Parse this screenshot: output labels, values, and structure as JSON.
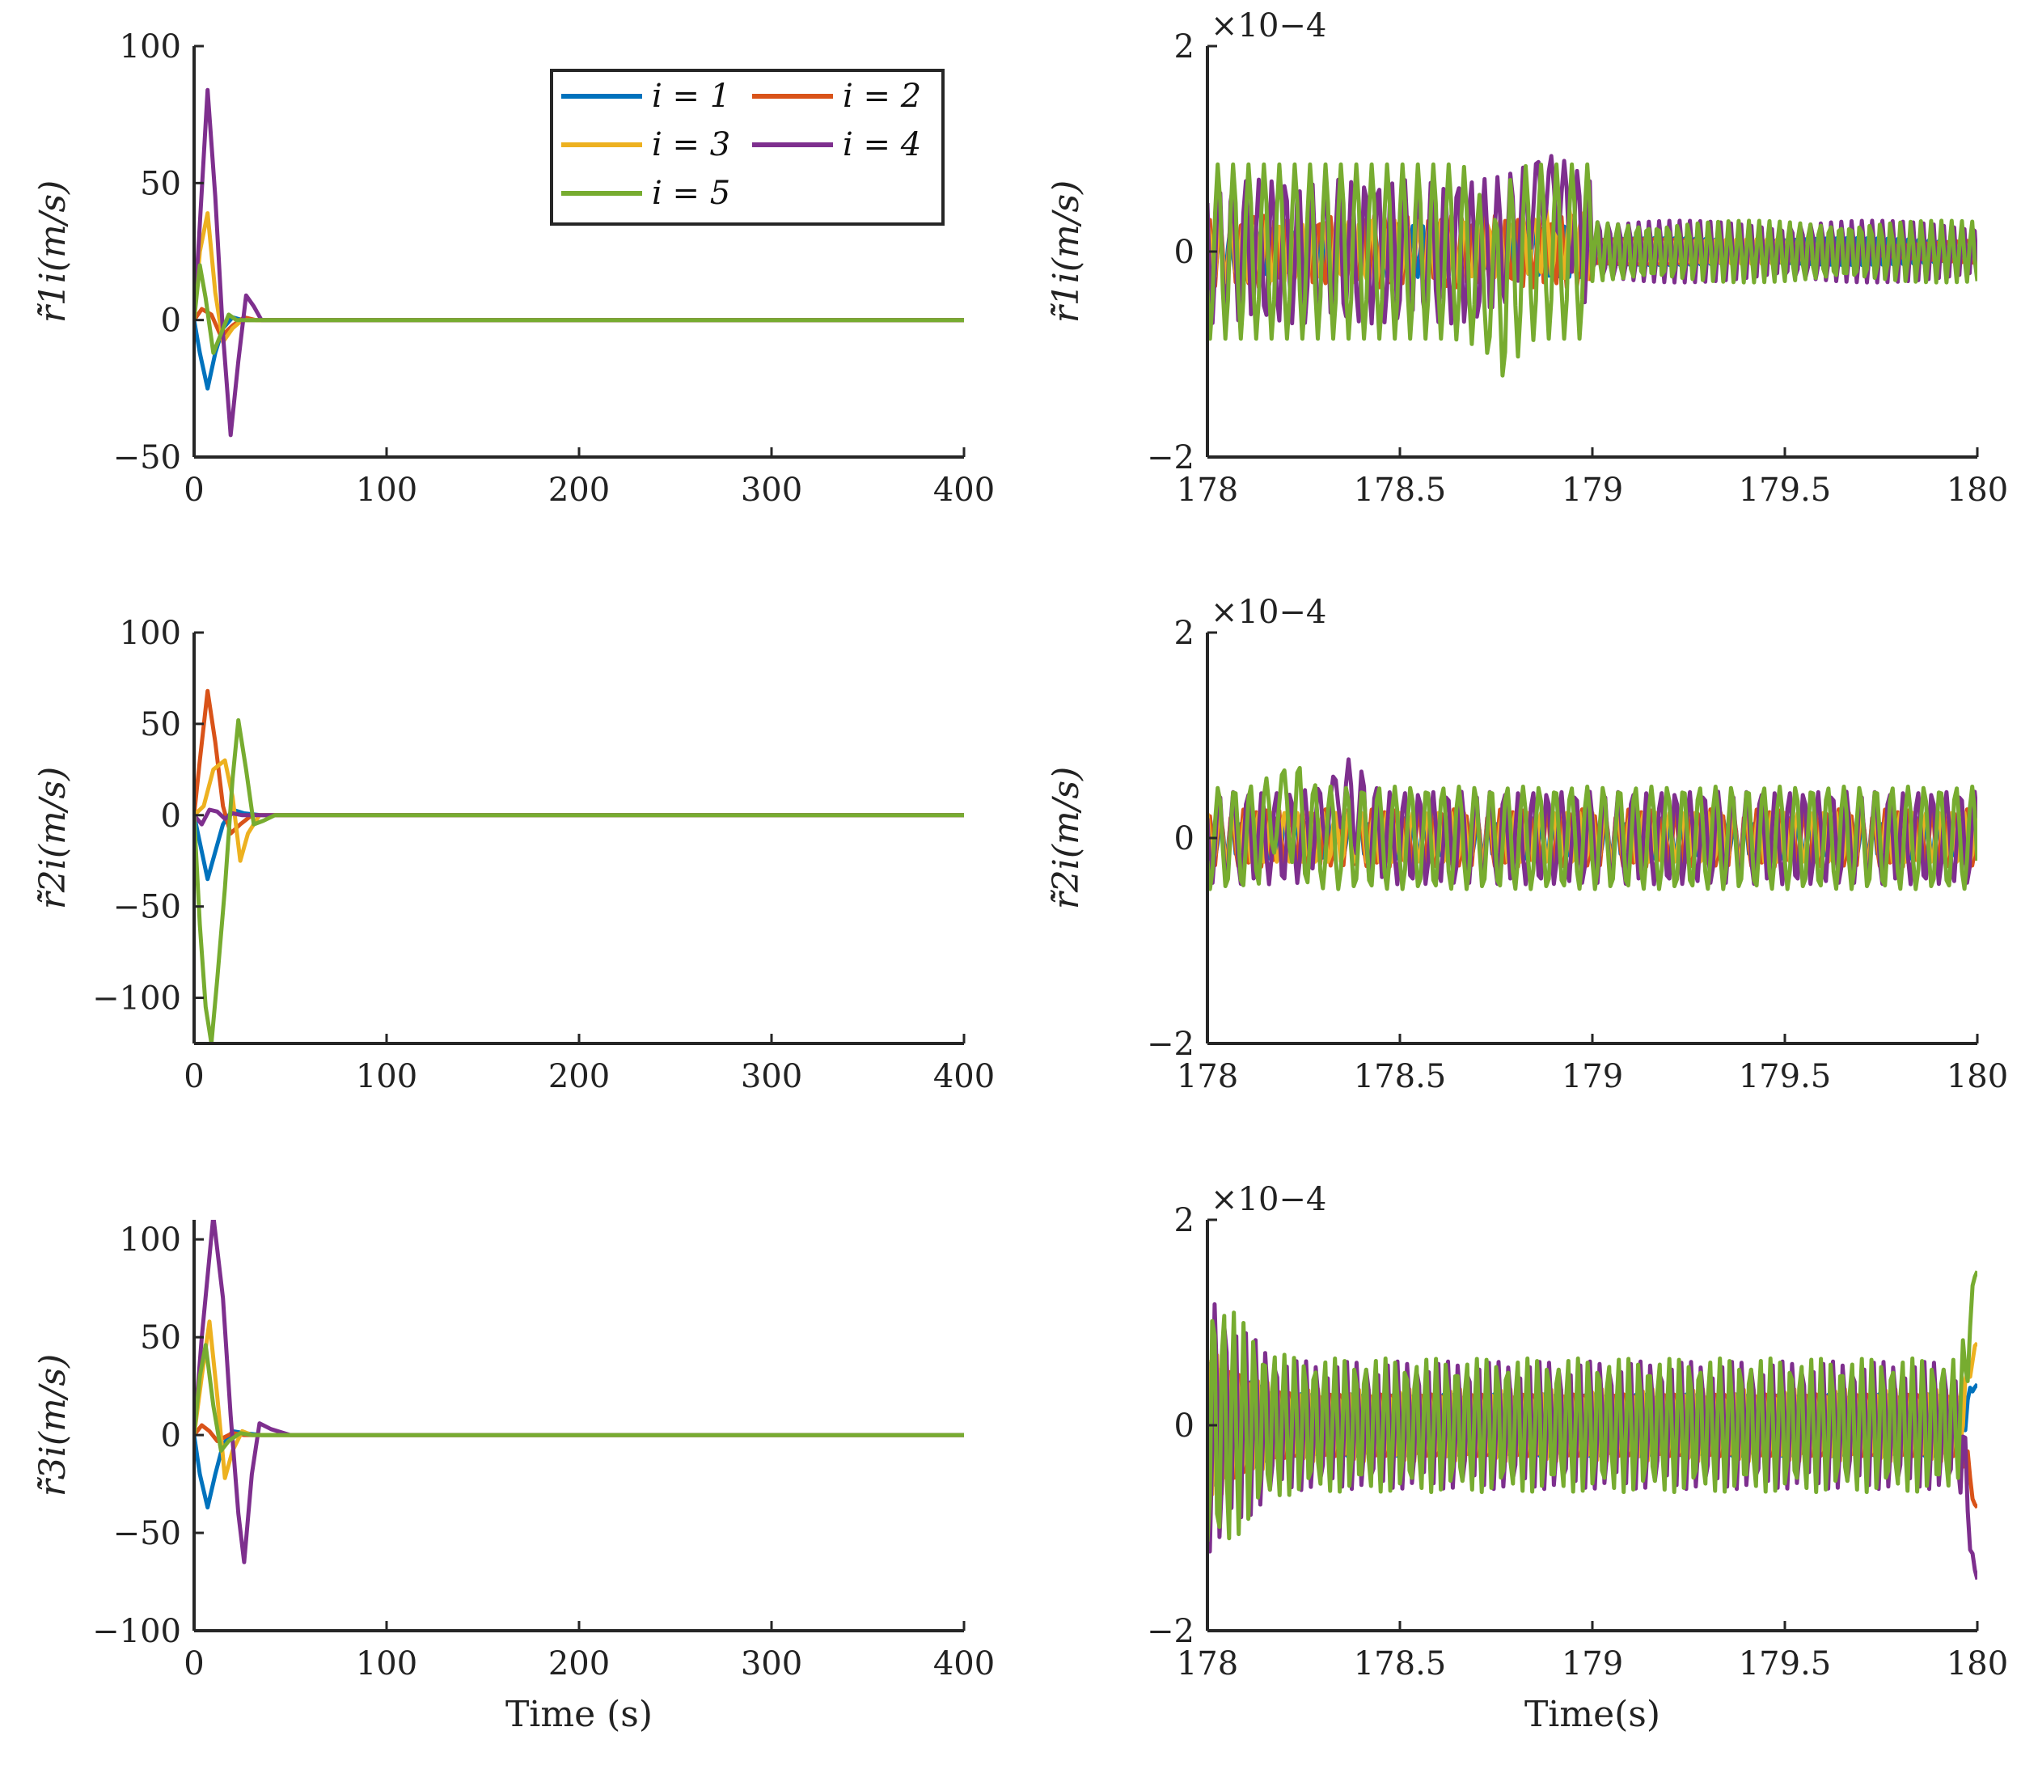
{
  "figure": {
    "series_colors": {
      "1": "#0072BD",
      "2": "#D95319",
      "3": "#EDB120",
      "4": "#7E2F8E",
      "5": "#77AC30"
    }
  },
  "legend": [
    {
      "key": "1",
      "label": "i = 1"
    },
    {
      "key": "2",
      "label": "i = 2"
    },
    {
      "key": "3",
      "label": "i = 3"
    },
    {
      "key": "4",
      "label": "i = 4"
    },
    {
      "key": "5",
      "label": "i = 5"
    }
  ],
  "chart_data": [
    {
      "id": "p1",
      "type": "line",
      "ylabel": "r̃̇1i(m/s)",
      "xlabel": "",
      "xlim": [
        0,
        400
      ],
      "ylim": [
        -50,
        100
      ],
      "xticks": [
        0,
        100,
        200,
        300,
        400
      ],
      "xtick_labels": [
        "0",
        "100",
        "200",
        "300",
        "400"
      ],
      "yticks": [
        -50,
        0,
        50,
        100
      ],
      "ytick_labels": [
        "−50",
        "0",
        "50",
        "100"
      ],
      "series": [
        {
          "name": "i = 1",
          "key": "1",
          "x": [
            0,
            3,
            7,
            11,
            15,
            20,
            25,
            30,
            40,
            400
          ],
          "y": [
            0,
            -12,
            -25,
            -12,
            -3,
            1,
            0,
            0,
            0,
            0
          ]
        },
        {
          "name": "i = 2",
          "key": "2",
          "x": [
            0,
            4,
            9,
            14,
            20,
            26,
            32,
            40,
            400
          ],
          "y": [
            0,
            4,
            2,
            -6,
            -2,
            1,
            0,
            0,
            0
          ]
        },
        {
          "name": "i = 3",
          "key": "3",
          "x": [
            0,
            3,
            7,
            11,
            15,
            20,
            25,
            30,
            40,
            400
          ],
          "y": [
            0,
            25,
            39,
            10,
            -8,
            -3,
            0,
            0,
            0,
            0
          ]
        },
        {
          "name": "i = 4",
          "key": "4",
          "x": [
            0,
            3,
            7,
            11,
            15,
            19,
            23,
            27,
            31,
            35,
            40,
            400
          ],
          "y": [
            0,
            35,
            84,
            45,
            -5,
            -42,
            -15,
            9,
            5,
            0,
            0,
            0
          ]
        },
        {
          "name": "i = 5",
          "key": "5",
          "x": [
            0,
            3,
            6,
            10,
            14,
            18,
            22,
            28,
            35,
            400
          ],
          "y": [
            0,
            20,
            8,
            -12,
            -5,
            2,
            0,
            0,
            0,
            0
          ]
        }
      ]
    },
    {
      "id": "p2",
      "type": "line",
      "ylabel": "r̃̇1i(m/s)",
      "xlabel": "",
      "xlim": [
        178,
        180
      ],
      "ylim": [
        -2,
        2
      ],
      "exponent": "×10−4",
      "xticks": [
        178,
        178.5,
        179,
        179.5,
        180
      ],
      "xtick_labels": [
        "178",
        "178.5",
        "179",
        "179.5",
        "180"
      ],
      "yticks": [
        -2,
        0,
        2
      ],
      "ytick_labels": [
        "−2",
        "0",
        "2"
      ],
      "gen": {
        "n": 300,
        "change": 179,
        "series": [
          {
            "key": "1",
            "before": [
              0.25,
              38,
              0.0
            ],
            "after": [
              0.13,
              38,
              1.0
            ],
            "mid": [
              0.0,
              178.9,
              0.1
            ]
          },
          {
            "key": "2",
            "before": [
              0.35,
              35,
              0.6
            ],
            "after": [
              0.12,
              37,
              2.0
            ],
            "mid": [
              0.0,
              178.9,
              0.1
            ]
          },
          {
            "key": "3",
            "before": [
              0.3,
              33,
              1.2
            ],
            "after": [
              0.12,
              37,
              3.0
            ],
            "mid": [
              0.1,
              178.9,
              0.1
            ]
          },
          {
            "key": "4",
            "before": [
              0.7,
              29,
              2.4
            ],
            "after": [
              0.3,
              38,
              4.0
            ],
            "mid": [
              0.6,
              178.88,
              0.08
            ]
          },
          {
            "key": "5",
            "before": [
              0.85,
              25,
              3.6
            ],
            "after": [
              0.3,
              38,
              5.0
            ],
            "mid": [
              -0.4,
              178.75,
              0.05
            ]
          }
        ]
      }
    },
    {
      "id": "p3",
      "type": "line",
      "ylabel": "r̃̇2i(m/s)",
      "xlabel": "",
      "xlim": [
        0,
        400
      ],
      "ylim": [
        -125,
        100
      ],
      "xticks": [
        0,
        100,
        200,
        300,
        400
      ],
      "xtick_labels": [
        "0",
        "100",
        "200",
        "300",
        "400"
      ],
      "yticks": [
        -100,
        -50,
        0,
        50,
        100
      ],
      "ytick_labels": [
        "−100",
        "−50",
        "0",
        "50",
        "100"
      ],
      "series": [
        {
          "name": "i = 1",
          "key": "1",
          "x": [
            0,
            3,
            7,
            11,
            15,
            20,
            26,
            35,
            400
          ],
          "y": [
            0,
            -15,
            -35,
            -20,
            -5,
            3,
            1,
            0,
            0
          ]
        },
        {
          "name": "i = 2",
          "key": "2",
          "x": [
            0,
            3,
            7,
            11,
            15,
            19,
            24,
            30,
            40,
            400
          ],
          "y": [
            0,
            30,
            68,
            40,
            5,
            -10,
            -5,
            0,
            0,
            0
          ]
        },
        {
          "name": "i = 3",
          "key": "3",
          "x": [
            0,
            5,
            10,
            16,
            20,
            24,
            28,
            34,
            40,
            400
          ],
          "y": [
            0,
            5,
            25,
            30,
            10,
            -25,
            -10,
            0,
            0,
            0
          ]
        },
        {
          "name": "i = 4",
          "key": "4",
          "x": [
            0,
            4,
            8,
            12,
            16,
            20,
            25,
            30,
            40,
            400
          ],
          "y": [
            0,
            -5,
            3,
            2,
            -2,
            1,
            0,
            0,
            0,
            0
          ]
        },
        {
          "name": "i = 5",
          "key": "5",
          "x": [
            0,
            3,
            6,
            9,
            12,
            16,
            20,
            23,
            27,
            31,
            36,
            42,
            400
          ],
          "y": [
            0,
            -60,
            -105,
            -125,
            -90,
            -40,
            20,
            52,
            25,
            -5,
            -3,
            0,
            0
          ]
        }
      ]
    },
    {
      "id": "p4",
      "type": "line",
      "ylabel": "r̃̇2i(m/s)",
      "xlabel": "",
      "xlim": [
        178,
        180
      ],
      "ylim": [
        -2,
        2
      ],
      "exponent": "×10−4",
      "xticks": [
        178,
        178.5,
        179,
        179.5,
        180
      ],
      "xtick_labels": [
        "178",
        "178.5",
        "179",
        "179.5",
        "180"
      ],
      "yticks": [
        -2,
        0,
        2
      ],
      "ytick_labels": [
        "−2",
        "0",
        "2"
      ],
      "gen": {
        "n": 300,
        "change": 180,
        "series": [
          {
            "key": "1",
            "before": [
              0.2,
              36,
              0.0
            ],
            "after": [
              0.2,
              36,
              0.0
            ],
            "mid": [
              0.0,
              179,
              0.1
            ]
          },
          {
            "key": "2",
            "before": [
              0.28,
              33,
              0.9
            ],
            "after": [
              0.28,
              33,
              0.9
            ],
            "mid": [
              0.0,
              179,
              0.1
            ]
          },
          {
            "key": "3",
            "before": [
              0.25,
              30,
              1.8
            ],
            "after": [
              0.25,
              30,
              1.8
            ],
            "mid": [
              0.0,
              179,
              0.1
            ]
          },
          {
            "key": "4",
            "before": [
              0.45,
              27,
              2.7
            ],
            "after": [
              0.45,
              27,
              2.7
            ],
            "mid": [
              0.4,
              178.35,
              0.06
            ]
          },
          {
            "key": "5",
            "before": [
              0.5,
              24,
              3.6
            ],
            "after": [
              0.5,
              24,
              3.6
            ],
            "mid": [
              0.3,
              178.2,
              0.05
            ]
          }
        ]
      }
    },
    {
      "id": "p5",
      "type": "line",
      "ylabel": "r̃̇3i(m/s)",
      "xlabel": "Time (s)",
      "xlim": [
        0,
        400
      ],
      "ylim": [
        -100,
        110
      ],
      "xticks": [
        0,
        100,
        200,
        300,
        400
      ],
      "xtick_labels": [
        "0",
        "100",
        "200",
        "300",
        "400"
      ],
      "yticks": [
        -100,
        -50,
        0,
        50,
        100
      ],
      "ytick_labels": [
        "−100",
        "−50",
        "0",
        "50",
        "100"
      ],
      "series": [
        {
          "name": "i = 1",
          "key": "1",
          "x": [
            0,
            3,
            7,
            11,
            15,
            20,
            26,
            35,
            400
          ],
          "y": [
            0,
            -20,
            -37,
            -20,
            -5,
            2,
            1,
            0,
            0
          ]
        },
        {
          "name": "i = 2",
          "key": "2",
          "x": [
            0,
            4,
            8,
            12,
            16,
            20,
            26,
            35,
            400
          ],
          "y": [
            0,
            5,
            2,
            -3,
            -1,
            1,
            0,
            0,
            0
          ]
        },
        {
          "name": "i = 3",
          "key": "3",
          "x": [
            0,
            4,
            8,
            12,
            16,
            20,
            25,
            30,
            40,
            400
          ],
          "y": [
            0,
            30,
            58,
            20,
            -22,
            -8,
            2,
            0,
            0,
            0
          ]
        },
        {
          "name": "i = 4",
          "key": "4",
          "x": [
            0,
            4,
            10,
            15,
            19,
            23,
            26,
            30,
            34,
            40,
            50,
            400
          ],
          "y": [
            0,
            50,
            112,
            70,
            10,
            -40,
            -65,
            -20,
            6,
            3,
            0,
            0
          ]
        },
        {
          "name": "i = 5",
          "key": "5",
          "x": [
            0,
            3,
            6,
            10,
            14,
            18,
            24,
            30,
            40,
            400
          ],
          "y": [
            0,
            30,
            46,
            15,
            -8,
            -3,
            1,
            0,
            0,
            0
          ]
        }
      ]
    },
    {
      "id": "p6",
      "type": "line",
      "ylabel": "",
      "xlabel": "Time(s)",
      "xlim": [
        178,
        180
      ],
      "ylim": [
        -2,
        2
      ],
      "exponent": "×10−4",
      "xticks": [
        178,
        178.5,
        179,
        179.5,
        180
      ],
      "xtick_labels": [
        "178",
        "178.5",
        "179",
        "179.5",
        "180"
      ],
      "yticks": [
        -2,
        0,
        2
      ],
      "ytick_labels": [
        "−2",
        "0",
        "2"
      ],
      "gen": {
        "n": 320,
        "change": 180,
        "flat_env": true,
        "series": [
          {
            "key": "1",
            "before": [
              0.3,
              38,
              0.0
            ],
            "after": [
              0.3,
              38,
              0.0
            ],
            "mid": [
              0.0,
              179,
              0.1
            ],
            "end": 0.4
          },
          {
            "key": "2",
            "before": [
              0.3,
              38,
              1.0
            ],
            "after": [
              0.3,
              38,
              1.0
            ],
            "mid": [
              0.0,
              179,
              0.1
            ],
            "end": -0.8
          },
          {
            "key": "3",
            "before": [
              0.35,
              38,
              2.0
            ],
            "after": [
              0.35,
              38,
              2.0
            ],
            "mid": [
              0.0,
              179,
              0.1
            ],
            "end": 0.8
          },
          {
            "key": "4",
            "before": [
              0.62,
              38,
              3.1
            ],
            "after": [
              0.62,
              38,
              3.1
            ],
            "mid": [
              0.0,
              179,
              0.1
            ],
            "end": -1.5
          },
          {
            "key": "5",
            "before": [
              0.65,
              38,
              4.2
            ],
            "after": [
              0.65,
              38,
              4.2
            ],
            "mid": [
              0.0,
              179,
              0.1
            ],
            "end": 1.5
          }
        ]
      }
    }
  ]
}
